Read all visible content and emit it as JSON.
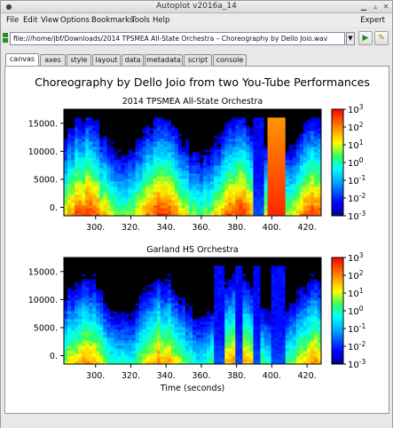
{
  "window": {
    "title": "Autoplot v2016a_14"
  },
  "menubar": {
    "items": [
      "File",
      "Edit",
      "View",
      "Options",
      "Bookmarks",
      "Tools",
      "Help"
    ],
    "expert_label": "Expert"
  },
  "address": {
    "value": "file:///home/jbf/Downloads/2014 TPSMEA All-State Orchestra – Choreography by Dello Joio.wav"
  },
  "tabs": [
    "canvas",
    "axes",
    "style",
    "layout",
    "data",
    "metadata",
    "script",
    "console"
  ],
  "active_tab": "canvas",
  "icons": {
    "dropdown": "chevron-down-icon",
    "go": "play-icon",
    "bookmark": "bookmark-icon",
    "address": "data-source-icon"
  },
  "chart_data": {
    "type": "heatmap",
    "title": "Choreography by Dello Joio from two You-Tube Performances",
    "xlabel": "Time (seconds)",
    "xlim": [
      282,
      428
    ],
    "xticks": [
      "300.",
      "320.",
      "340.",
      "360.",
      "380.",
      "400.",
      "420."
    ],
    "colorbar": {
      "scale": "log",
      "range": [
        0.001,
        1000
      ],
      "ticks": [
        {
          "base": "10",
          "exp": "3"
        },
        {
          "base": "10",
          "exp": "2"
        },
        {
          "base": "10",
          "exp": "1"
        },
        {
          "base": "10",
          "exp": "0"
        },
        {
          "base": "10",
          "exp": "-1"
        },
        {
          "base": "10",
          "exp": "-2"
        },
        {
          "base": "10",
          "exp": "-3"
        }
      ]
    },
    "panels": [
      {
        "title": "2014 TPSMEA All-State Orchestra",
        "ylim": [
          -1500,
          17500
        ],
        "yticks": [
          "15000.",
          "10000.",
          "5000.",
          "0."
        ]
      },
      {
        "title": "Garland HS Orchestra",
        "ylim": [
          -1500,
          17500
        ],
        "yticks": [
          "15000.",
          "10000.",
          "5000.",
          "0."
        ]
      }
    ]
  }
}
